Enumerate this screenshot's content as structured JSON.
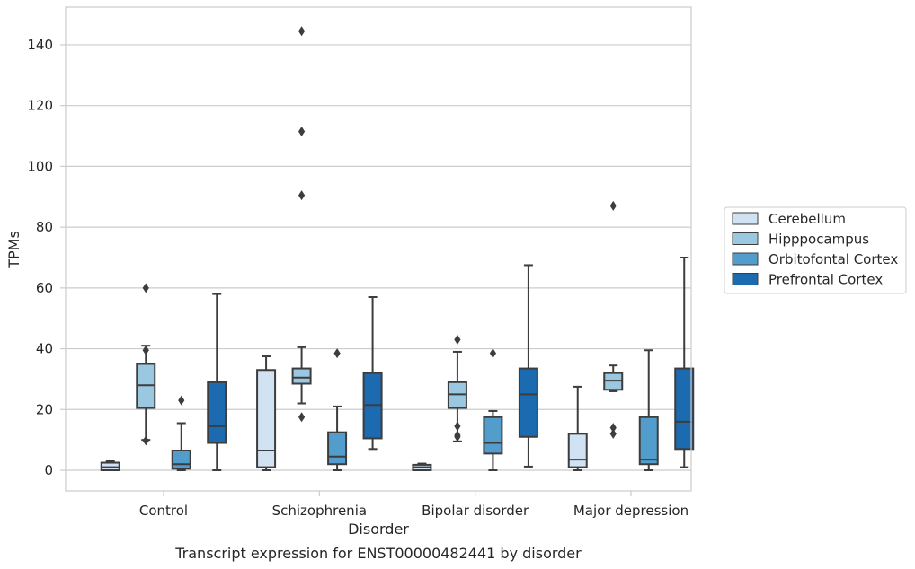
{
  "chart_data": {
    "type": "box",
    "caption": "Transcript expression for ENST00000482441 by disorder",
    "xlabel": "Disorder",
    "ylabel": "TPMs",
    "ylim": [
      -7,
      152
    ],
    "yticks": [
      0,
      20,
      40,
      60,
      80,
      100,
      120,
      140
    ],
    "grid": true,
    "legend_position": "right",
    "categories": [
      "Control",
      "Schizophrenia",
      "Bipolar disorder",
      "Major depression"
    ],
    "series": [
      {
        "name": "Cerebellum",
        "color": "#d1e2f2",
        "boxes": [
          {
            "whislo": 0,
            "q1": 0,
            "med": 1,
            "q3": 2.5,
            "whishi": 3,
            "fliers": []
          },
          {
            "whislo": 0,
            "q1": 1,
            "med": 6.5,
            "q3": 33,
            "whishi": 37.5,
            "fliers": []
          },
          {
            "whislo": 0,
            "q1": 0,
            "med": 1,
            "q3": 1.8,
            "whishi": 2.2,
            "fliers": []
          },
          {
            "whislo": 0,
            "q1": 1,
            "med": 3.5,
            "q3": 12,
            "whishi": 27.5,
            "fliers": []
          }
        ]
      },
      {
        "name": "Hipppocampus",
        "color": "#9ac8e0",
        "boxes": [
          {
            "whislo": 10,
            "q1": 20.5,
            "med": 28,
            "q3": 35,
            "whishi": 41,
            "fliers": [
              60,
              39.5,
              9.8
            ]
          },
          {
            "whislo": 22,
            "q1": 28.5,
            "med": 30.5,
            "q3": 33.5,
            "whishi": 40.5,
            "fliers": [
              144.5,
              111.5,
              90.5,
              17.5
            ]
          },
          {
            "whislo": 9.5,
            "q1": 20.5,
            "med": 25,
            "q3": 29,
            "whishi": 39,
            "fliers": [
              43,
              14.5,
              11.5,
              11
            ]
          },
          {
            "whislo": 26,
            "q1": 26.5,
            "med": 29.5,
            "q3": 32,
            "whishi": 34.5,
            "fliers": [
              87,
              14,
              12
            ]
          }
        ]
      },
      {
        "name": "Orbitofontal Cortex",
        "color": "#529dcc",
        "boxes": [
          {
            "whislo": 0,
            "q1": 0.5,
            "med": 2,
            "q3": 6.5,
            "whishi": 15.5,
            "fliers": [
              23
            ]
          },
          {
            "whislo": 0,
            "q1": 2,
            "med": 4.5,
            "q3": 12.5,
            "whishi": 21,
            "fliers": [
              38.5
            ]
          },
          {
            "whislo": 0,
            "q1": 5.5,
            "med": 9,
            "q3": 17.5,
            "whishi": 19.5,
            "fliers": [
              38.5
            ]
          },
          {
            "whislo": 0,
            "q1": 2,
            "med": 3.5,
            "q3": 17.5,
            "whishi": 39.5,
            "fliers": []
          }
        ]
      },
      {
        "name": "Prefrontal Cortex",
        "color": "#1c6aaf",
        "boxes": [
          {
            "whislo": 0,
            "q1": 9,
            "med": 14.5,
            "q3": 29,
            "whishi": 58,
            "fliers": []
          },
          {
            "whislo": 7,
            "q1": 10.5,
            "med": 21.5,
            "q3": 32,
            "whishi": 57,
            "fliers": []
          },
          {
            "whislo": 1.2,
            "q1": 11,
            "med": 25,
            "q3": 33.5,
            "whishi": 67.5,
            "fliers": []
          },
          {
            "whislo": 1,
            "q1": 7,
            "med": 16,
            "q3": 33.5,
            "whishi": 70,
            "fliers": []
          }
        ]
      }
    ]
  }
}
